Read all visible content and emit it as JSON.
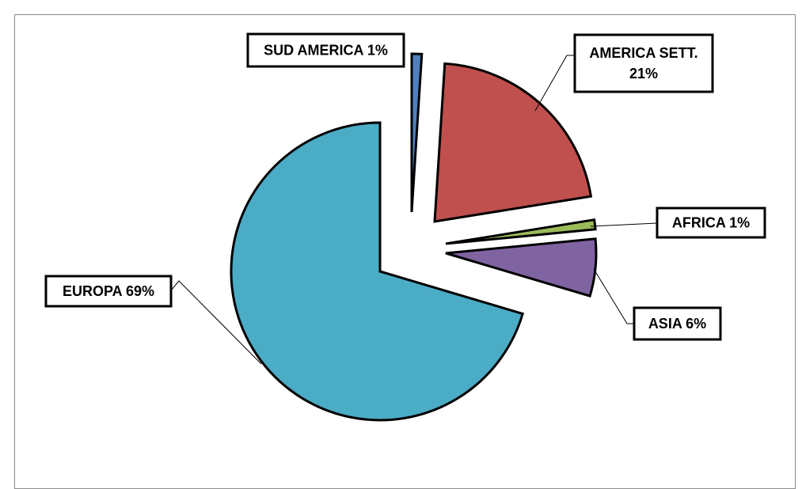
{
  "chart_data": {
    "type": "pie",
    "title": "",
    "slices": [
      {
        "name": "SUD AMERICA",
        "value": 1,
        "label": "SUD AMERICA 1%",
        "color": "#4F81BD"
      },
      {
        "name": "AMERICA SETT.",
        "value": 21,
        "label_lines": [
          "AMERICA SETT.",
          "21%"
        ],
        "color": "#C0504D"
      },
      {
        "name": "AFRICA",
        "value": 1,
        "label": "AFRICA 1%",
        "color": "#9BBB59"
      },
      {
        "name": "ASIA",
        "value": 6,
        "label": "ASIA 6%",
        "color": "#8064A2"
      },
      {
        "name": "EUROPA",
        "value": 69,
        "label": "EUROPA 69%",
        "color": "#4BACC6"
      }
    ],
    "exploded": true,
    "legend": "none"
  }
}
